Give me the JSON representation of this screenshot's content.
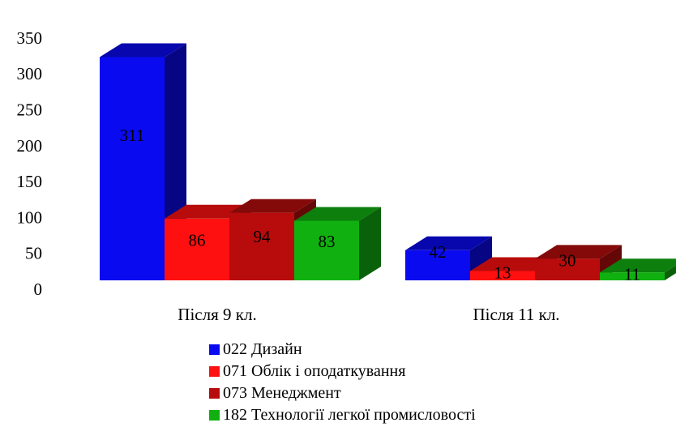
{
  "chart_data": {
    "type": "bar",
    "categories": [
      "Після 9 кл.",
      "Після 11 кл."
    ],
    "series": [
      {
        "name": "022 Дизайн",
        "values": [
          311,
          42
        ],
        "color": "#0a0af0"
      },
      {
        "name": "071 Облік і оподаткування",
        "values": [
          86,
          13
        ],
        "color": "#ff1010"
      },
      {
        "name": "073 Менеджмент",
        "values": [
          94,
          30
        ],
        "color": "#b80c0c"
      },
      {
        "name": "182 Технології легкої промисловості",
        "values": [
          83,
          11
        ],
        "color": "#10b010"
      }
    ],
    "yticks": [
      0,
      50,
      100,
      150,
      200,
      250,
      300,
      350
    ],
    "ylim": [
      0,
      350
    ],
    "grid": false,
    "legend_position": "bottom",
    "three_d": true
  }
}
